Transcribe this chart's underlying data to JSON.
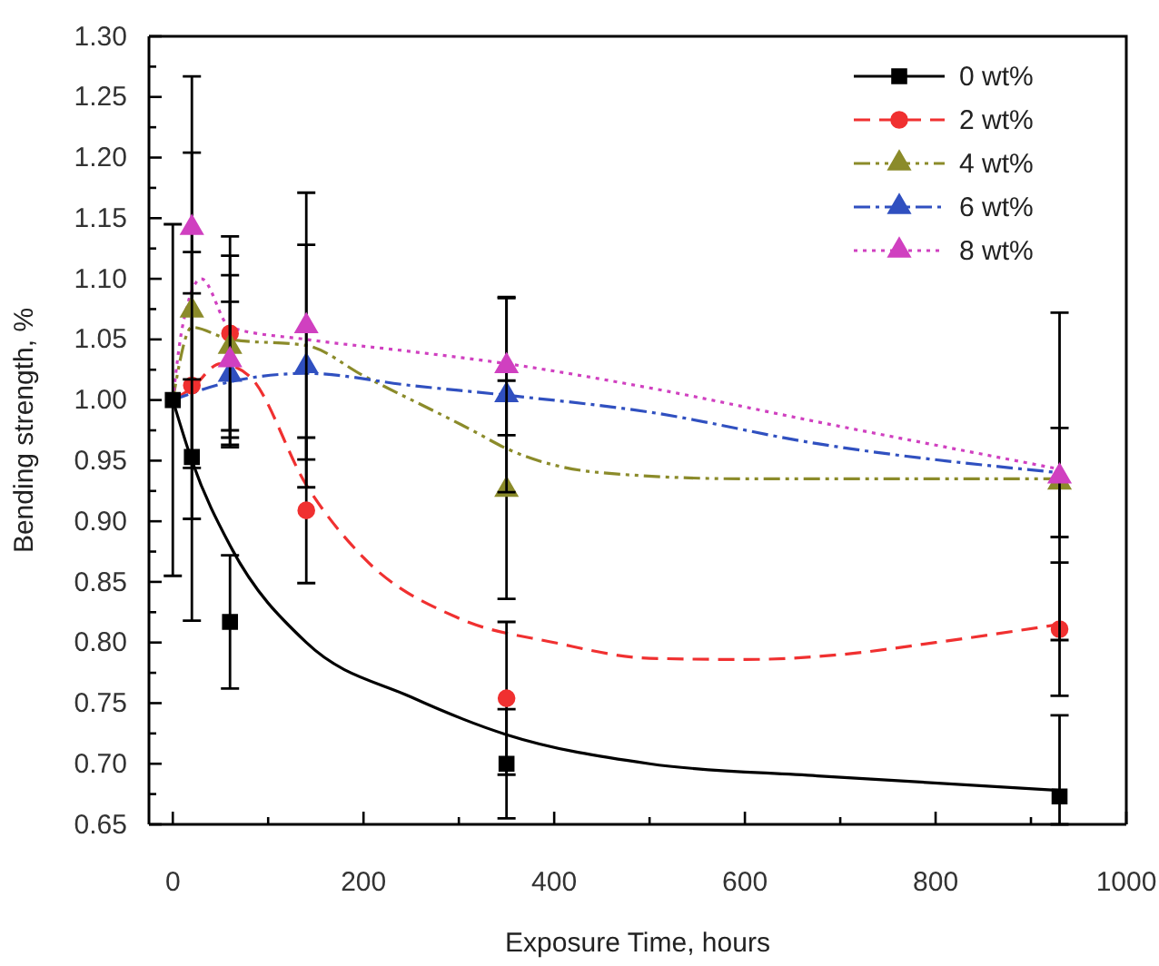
{
  "chart_data": {
    "type": "scatter",
    "xlabel": "Exposure Time, hours",
    "ylabel": "Bending strength, %",
    "xlim": [
      -25,
      1000
    ],
    "ylim": [
      0.65,
      1.3
    ],
    "xticks": [
      0,
      {
        "value": 100,
        "label": null
      },
      200,
      {
        "value": 300,
        "label": null
      },
      400,
      {
        "value": 500,
        "label": null
      },
      600,
      {
        "value": 700,
        "label": null
      },
      800,
      {
        "value": 900,
        "label": null
      },
      1000
    ],
    "yticks": [
      {
        "value": 0.65,
        "label": "0.65"
      },
      {
        "value": 0.675,
        "label": null
      },
      {
        "value": 0.7,
        "label": "0.70"
      },
      {
        "value": 0.725,
        "label": null
      },
      {
        "value": 0.75,
        "label": "0.75"
      },
      {
        "value": 0.775,
        "label": null
      },
      {
        "value": 0.8,
        "label": "0.80"
      },
      {
        "value": 0.825,
        "label": null
      },
      {
        "value": 0.85,
        "label": "0.85"
      },
      {
        "value": 0.875,
        "label": null
      },
      {
        "value": 0.9,
        "label": "0.90"
      },
      {
        "value": 0.925,
        "label": null
      },
      {
        "value": 0.95,
        "label": "0.95"
      },
      {
        "value": 0.975,
        "label": null
      },
      {
        "value": 1.0,
        "label": "1.00"
      },
      {
        "value": 1.025,
        "label": null
      },
      {
        "value": 1.05,
        "label": "1.05"
      },
      {
        "value": 1.075,
        "label": null
      },
      {
        "value": 1.1,
        "label": "1.10"
      },
      {
        "value": 1.125,
        "label": null
      },
      {
        "value": 1.15,
        "label": "1.15"
      },
      {
        "value": 1.175,
        "label": null
      },
      {
        "value": 1.2,
        "label": "1.20"
      },
      {
        "value": 1.225,
        "label": null
      },
      {
        "value": 1.25,
        "label": "1.25"
      },
      {
        "value": 1.275,
        "label": null
      },
      {
        "value": 1.3,
        "label": "1.30"
      }
    ],
    "legend": "top right",
    "series": [
      {
        "type": "line",
        "color": "#000000",
        "line_style": "solid",
        "x": [
          0,
          20,
          60,
          140,
          250,
          350,
          500,
          676,
          930
        ],
        "values": [
          1.0,
          0.95,
          0.88,
          0.8,
          0.755,
          0.724,
          0.7,
          0.69,
          0.678
        ]
      },
      {
        "type": "line",
        "color": "#f03030",
        "line_style": "dashed",
        "x": [
          0,
          20,
          50,
          80,
          140,
          200,
          300,
          400,
          500,
          600,
          700,
          800,
          930
        ],
        "values": [
          1.0,
          1.01,
          1.03,
          1.02,
          0.93,
          0.87,
          0.82,
          0.8,
          0.787,
          0.786,
          0.79,
          0.8,
          0.815
        ]
      },
      {
        "type": "line",
        "color": "#8b8b2a",
        "line_style": "dashdotdot",
        "x": [
          0,
          20,
          60,
          140,
          200,
          314,
          350,
          450,
          600,
          930
        ],
        "values": [
          1.0,
          1.06,
          1.05,
          1.045,
          1.02,
          0.975,
          0.96,
          0.94,
          0.935,
          0.935
        ]
      },
      {
        "type": "line",
        "color": "#3050c0",
        "line_style": "dashdot",
        "x": [
          0,
          60,
          140,
          250,
          350,
          500,
          676,
          930
        ],
        "values": [
          1.0,
          1.015,
          1.022,
          1.012,
          1.004,
          0.99,
          0.964,
          0.94
        ]
      },
      {
        "type": "line",
        "color": "#d040c0",
        "line_style": "dotted",
        "x": [
          0,
          10,
          30,
          60,
          140,
          250,
          350,
          500,
          676,
          930
        ],
        "values": [
          1.0,
          1.06,
          1.1,
          1.06,
          1.05,
          1.04,
          1.03,
          1.01,
          0.982,
          0.943
        ]
      },
      {
        "name": "0 wt%",
        "marker": "square",
        "color": "#000000",
        "line_style": "solid",
        "x": [
          0,
          20,
          60,
          350,
          930
        ],
        "values": [
          1.0,
          0.953,
          0.817,
          0.7,
          0.673
        ],
        "errors": [
          0.145,
          0.135,
          0.055,
          0.045,
          [
            0.65,
            0.74
          ]
        ]
      },
      {
        "name": "2 wt%",
        "marker": "circle",
        "color": "#f03030",
        "line_style": "dashed",
        "x": [
          20,
          60,
          140,
          350,
          930
        ],
        "values": [
          1.012,
          1.055,
          0.909,
          0.754,
          0.811
        ],
        "errors": [
          0.11,
          0.08,
          0.06,
          0.063,
          0.055
        ]
      },
      {
        "name": "4 wt%",
        "marker": "triangle",
        "color": "#8b8b2a",
        "line_style": "dashdotdot",
        "x": [
          20,
          60,
          350,
          930
        ],
        "values": [
          1.074,
          1.044,
          0.926,
          0.932
        ],
        "errors": [
          0.13,
          0.075,
          0.09,
          0.045
        ]
      },
      {
        "name": "6 wt%",
        "marker": "triangle",
        "color": "#3050c0",
        "line_style": "dashdot",
        "x": [
          60,
          140,
          350
        ],
        "values": [
          1.021,
          1.028,
          1.004
        ],
        "errors": [
          0.06,
          0.1,
          0.08
        ]
      },
      {
        "name": "8 wt%",
        "marker": "triangle",
        "color": "#d040c0",
        "line_style": "dotted",
        "x": [
          20,
          60,
          140,
          350,
          930
        ],
        "values": [
          1.142,
          1.033,
          1.061,
          1.028,
          0.937
        ],
        "errors": [
          0.125,
          0.07,
          0.11,
          0.057,
          0.135
        ]
      }
    ]
  }
}
